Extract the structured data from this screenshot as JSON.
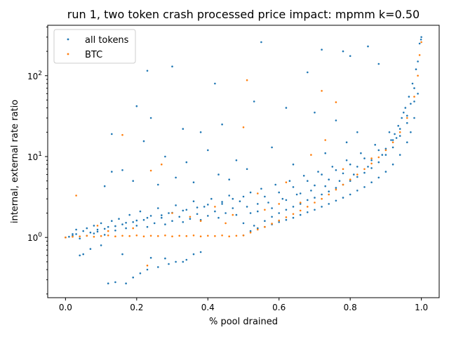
{
  "chart_data": {
    "type": "scatter",
    "title": "run 1, two token crash processed price impact: mpmm k=0.50",
    "xlabel": "% pool drained",
    "ylabel": "internal, external rate ratio",
    "x_range": [
      -0.05,
      1.05
    ],
    "y_range": [
      0.18,
      420
    ],
    "y_scale": "log",
    "x_ticks": [
      "0.0",
      "0.2",
      "0.4",
      "0.6",
      "0.8",
      "1.0"
    ],
    "x_tick_values": [
      0,
      0.2,
      0.4,
      0.6,
      0.8,
      1.0
    ],
    "y_ticks": [
      "10^0",
      "10^1",
      "10^2"
    ],
    "y_tick_values": [
      1,
      10,
      100
    ],
    "grid": false,
    "legend_position": "top-left",
    "series": [
      {
        "name": "all tokens",
        "color": "#1f77b4",
        "points": [
          [
            0.0,
            1.0
          ],
          [
            0.01,
            1.02
          ],
          [
            0.02,
            1.05
          ],
          [
            0.03,
            1.1
          ],
          [
            0.04,
            0.97
          ],
          [
            0.05,
            1.2
          ],
          [
            0.06,
            1.3
          ],
          [
            0.07,
            1.15
          ],
          [
            0.08,
            1.4
          ],
          [
            0.09,
            1.25
          ],
          [
            0.1,
            1.5
          ],
          [
            0.11,
            1.08
          ],
          [
            0.12,
            1.35
          ],
          [
            0.13,
            1.6
          ],
          [
            0.14,
            1.22
          ],
          [
            0.15,
            1.7
          ],
          [
            0.16,
            1.45
          ],
          [
            0.17,
            1.3
          ],
          [
            0.18,
            1.9
          ],
          [
            0.19,
            1.55
          ],
          [
            0.2,
            1.4
          ],
          [
            0.21,
            2.1
          ],
          [
            0.22,
            1.65
          ],
          [
            0.23,
            1.35
          ],
          [
            0.24,
            1.85
          ],
          [
            0.25,
            1.5
          ],
          [
            0.26,
            2.3
          ],
          [
            0.27,
            1.75
          ],
          [
            0.28,
            1.45
          ],
          [
            0.29,
            2.0
          ],
          [
            0.3,
            1.6
          ],
          [
            0.31,
            2.5
          ],
          [
            0.32,
            1.8
          ],
          [
            0.33,
            1.55
          ],
          [
            0.34,
            2.2
          ],
          [
            0.35,
            1.7
          ],
          [
            0.36,
            2.8
          ],
          [
            0.37,
            1.95
          ],
          [
            0.38,
            1.65
          ],
          [
            0.39,
            2.4
          ],
          [
            0.4,
            1.85
          ],
          [
            0.41,
            3.0
          ],
          [
            0.42,
            2.1
          ],
          [
            0.43,
            1.75
          ],
          [
            0.44,
            2.6
          ],
          [
            0.45,
            2.0
          ],
          [
            0.46,
            3.3
          ],
          [
            0.47,
            2.3
          ],
          [
            0.48,
            1.9
          ],
          [
            0.49,
            2.8
          ],
          [
            0.5,
            1.06
          ],
          [
            0.51,
            2.4
          ],
          [
            0.52,
            3.6
          ],
          [
            0.53,
            1.4
          ],
          [
            0.54,
            2.1
          ],
          [
            0.55,
            4.0
          ],
          [
            0.56,
            1.6
          ],
          [
            0.57,
            2.7
          ],
          [
            0.58,
            1.8
          ],
          [
            0.59,
            4.5
          ],
          [
            0.6,
            2.0
          ],
          [
            0.61,
            3.0
          ],
          [
            0.62,
            2.2
          ],
          [
            0.63,
            5.0
          ],
          [
            0.64,
            2.4
          ],
          [
            0.65,
            3.4
          ],
          [
            0.66,
            2.6
          ],
          [
            0.67,
            5.8
          ],
          [
            0.68,
            2.9
          ],
          [
            0.69,
            3.8
          ],
          [
            0.7,
            3.1
          ],
          [
            0.71,
            6.5
          ],
          [
            0.72,
            3.4
          ],
          [
            0.73,
            4.3
          ],
          [
            0.74,
            3.7
          ],
          [
            0.75,
            7.5
          ],
          [
            0.76,
            4.1
          ],
          [
            0.77,
            5.0
          ],
          [
            0.78,
            4.5
          ],
          [
            0.79,
            9.0
          ],
          [
            0.8,
            5.0
          ],
          [
            0.81,
            6.0
          ],
          [
            0.82,
            5.6
          ],
          [
            0.83,
            11.0
          ],
          [
            0.84,
            6.3
          ],
          [
            0.85,
            7.5
          ],
          [
            0.86,
            7.2
          ],
          [
            0.87,
            14.0
          ],
          [
            0.88,
            8.5
          ],
          [
            0.89,
            10.5
          ],
          [
            0.9,
            10.5
          ],
          [
            0.91,
            20.0
          ],
          [
            0.92,
            13.0
          ],
          [
            0.93,
            17.0
          ],
          [
            0.94,
            18.0
          ],
          [
            0.95,
            35.0
          ],
          [
            0.96,
            26.0
          ],
          [
            0.97,
            45.0
          ],
          [
            0.98,
            70.0
          ],
          [
            0.99,
            150.0
          ],
          [
            1.0,
            300.0
          ],
          [
            0.995,
            250.0
          ],
          [
            0.985,
            120.0
          ],
          [
            0.975,
            80.0
          ],
          [
            0.965,
            55.0
          ],
          [
            0.955,
            40.0
          ],
          [
            0.945,
            30.0
          ],
          [
            0.935,
            24.0
          ],
          [
            0.925,
            19.0
          ],
          [
            0.915,
            16.0
          ],
          [
            0.23,
            115.0
          ],
          [
            0.3,
            130.0
          ],
          [
            0.55,
            260.0
          ],
          [
            0.72,
            210.0
          ],
          [
            0.78,
            200.0
          ],
          [
            0.8,
            175.0
          ],
          [
            0.85,
            230.0
          ],
          [
            0.88,
            140.0
          ],
          [
            0.68,
            110.0
          ],
          [
            0.42,
            80.0
          ],
          [
            0.2,
            42.0
          ],
          [
            0.24,
            30.0
          ],
          [
            0.33,
            22.0
          ],
          [
            0.38,
            20.0
          ],
          [
            0.44,
            25.0
          ],
          [
            0.53,
            48.0
          ],
          [
            0.62,
            40.0
          ],
          [
            0.7,
            35.0
          ],
          [
            0.76,
            28.0
          ],
          [
            0.82,
            20.0
          ],
          [
            0.13,
            19.0
          ],
          [
            0.22,
            15.5
          ],
          [
            0.28,
            10.0
          ],
          [
            0.34,
            8.5
          ],
          [
            0.4,
            12.0
          ],
          [
            0.48,
            9.0
          ],
          [
            0.58,
            13.0
          ],
          [
            0.64,
            8.0
          ],
          [
            0.73,
            11.0
          ],
          [
            0.79,
            15.0
          ],
          [
            0.13,
            6.5
          ],
          [
            0.16,
            6.8
          ],
          [
            0.11,
            4.3
          ],
          [
            0.19,
            5.0
          ],
          [
            0.26,
            4.5
          ],
          [
            0.31,
            5.5
          ],
          [
            0.36,
            4.8
          ],
          [
            0.43,
            6.0
          ],
          [
            0.46,
            5.2
          ],
          [
            0.51,
            7.0
          ],
          [
            0.07,
            0.72
          ],
          [
            0.04,
            0.6
          ],
          [
            0.05,
            0.62
          ],
          [
            0.1,
            0.8
          ],
          [
            0.16,
            0.62
          ],
          [
            0.24,
            0.56
          ],
          [
            0.28,
            0.55
          ],
          [
            0.33,
            0.5
          ],
          [
            0.36,
            0.62
          ],
          [
            0.38,
            0.66
          ],
          [
            0.12,
            0.27
          ],
          [
            0.14,
            0.28
          ],
          [
            0.17,
            0.27
          ],
          [
            0.19,
            0.32
          ],
          [
            0.21,
            0.36
          ],
          [
            0.23,
            0.4
          ],
          [
            0.26,
            0.43
          ],
          [
            0.29,
            0.47
          ],
          [
            0.31,
            0.5
          ],
          [
            0.34,
            0.53
          ],
          [
            0.02,
            1.1
          ],
          [
            0.03,
            1.25
          ],
          [
            0.06,
            1.05
          ],
          [
            0.08,
            1.12
          ],
          [
            0.09,
            1.18
          ],
          [
            0.11,
            1.28
          ],
          [
            0.14,
            1.38
          ],
          [
            0.17,
            1.52
          ],
          [
            0.2,
            1.62
          ],
          [
            0.23,
            1.75
          ],
          [
            0.27,
            1.88
          ],
          [
            0.3,
            2.02
          ],
          [
            0.33,
            2.15
          ],
          [
            0.37,
            2.35
          ],
          [
            0.4,
            2.55
          ],
          [
            0.44,
            2.75
          ],
          [
            0.47,
            3.0
          ],
          [
            0.5,
            3.2
          ],
          [
            0.52,
            1.2
          ],
          [
            0.54,
            1.3
          ],
          [
            0.56,
            1.35
          ],
          [
            0.58,
            1.45
          ],
          [
            0.6,
            1.55
          ],
          [
            0.62,
            1.65
          ],
          [
            0.64,
            1.75
          ],
          [
            0.66,
            1.9
          ],
          [
            0.68,
            2.05
          ],
          [
            0.7,
            2.2
          ],
          [
            0.72,
            2.4
          ],
          [
            0.74,
            2.6
          ],
          [
            0.76,
            2.85
          ],
          [
            0.78,
            3.1
          ],
          [
            0.8,
            3.4
          ],
          [
            0.82,
            3.8
          ],
          [
            0.84,
            4.2
          ],
          [
            0.86,
            4.8
          ],
          [
            0.88,
            5.5
          ],
          [
            0.9,
            6.5
          ],
          [
            0.92,
            8.0
          ],
          [
            0.94,
            10.5
          ],
          [
            0.96,
            15.0
          ],
          [
            0.97,
            20.0
          ],
          [
            0.98,
            30.0
          ],
          [
            0.99,
            60.0
          ],
          [
            0.999,
            280.0
          ],
          [
            0.5,
            1.5
          ],
          [
            0.52,
            2.0
          ],
          [
            0.54,
            2.6
          ],
          [
            0.56,
            3.2
          ],
          [
            0.58,
            2.3
          ],
          [
            0.6,
            3.6
          ],
          [
            0.62,
            2.9
          ],
          [
            0.64,
            4.2
          ],
          [
            0.66,
            3.5
          ],
          [
            0.68,
            5.0
          ],
          [
            0.7,
            4.4
          ],
          [
            0.72,
            6.0
          ],
          [
            0.74,
            5.2
          ],
          [
            0.76,
            6.8
          ],
          [
            0.78,
            6.2
          ],
          [
            0.8,
            8.0
          ],
          [
            0.82,
            7.5
          ],
          [
            0.84,
            9.5
          ],
          [
            0.86,
            9.0
          ],
          [
            0.88,
            12.0
          ],
          [
            0.9,
            12.5
          ],
          [
            0.92,
            16.0
          ],
          [
            0.94,
            22.0
          ],
          [
            0.96,
            32.0
          ],
          [
            0.98,
            48.0
          ]
        ]
      },
      {
        "name": "BTC",
        "color": "#ff7f0e",
        "points": [
          [
            0.0,
            1.0
          ],
          [
            0.02,
            1.02
          ],
          [
            0.04,
            1.03
          ],
          [
            0.06,
            1.05
          ],
          [
            0.08,
            1.02
          ],
          [
            0.1,
            1.04
          ],
          [
            0.12,
            1.06
          ],
          [
            0.14,
            1.03
          ],
          [
            0.16,
            1.05
          ],
          [
            0.18,
            1.04
          ],
          [
            0.2,
            1.06
          ],
          [
            0.22,
            1.03
          ],
          [
            0.24,
            1.05
          ],
          [
            0.26,
            1.04
          ],
          [
            0.28,
            1.06
          ],
          [
            0.3,
            1.03
          ],
          [
            0.32,
            1.05
          ],
          [
            0.34,
            1.04
          ],
          [
            0.36,
            1.06
          ],
          [
            0.38,
            1.03
          ],
          [
            0.4,
            1.05
          ],
          [
            0.42,
            1.04
          ],
          [
            0.44,
            1.06
          ],
          [
            0.46,
            1.03
          ],
          [
            0.48,
            1.05
          ],
          [
            0.5,
            1.06
          ],
          [
            0.52,
            1.15
          ],
          [
            0.54,
            1.25
          ],
          [
            0.56,
            1.35
          ],
          [
            0.58,
            1.48
          ],
          [
            0.6,
            1.62
          ],
          [
            0.62,
            1.78
          ],
          [
            0.64,
            1.95
          ],
          [
            0.66,
            2.15
          ],
          [
            0.68,
            2.4
          ],
          [
            0.7,
            2.7
          ],
          [
            0.72,
            3.0
          ],
          [
            0.74,
            3.4
          ],
          [
            0.76,
            3.9
          ],
          [
            0.78,
            4.5
          ],
          [
            0.8,
            5.2
          ],
          [
            0.82,
            6.0
          ],
          [
            0.84,
            7.0
          ],
          [
            0.86,
            8.2
          ],
          [
            0.88,
            9.8
          ],
          [
            0.9,
            12.0
          ],
          [
            0.92,
            15.0
          ],
          [
            0.94,
            20.0
          ],
          [
            0.96,
            30.0
          ],
          [
            0.98,
            55.0
          ],
          [
            0.99,
            100.0
          ],
          [
            1.0,
            260.0
          ],
          [
            0.995,
            180.0
          ],
          [
            0.03,
            3.3
          ],
          [
            0.16,
            18.5
          ],
          [
            0.24,
            6.7
          ],
          [
            0.27,
            8.0
          ],
          [
            0.51,
            88.0
          ],
          [
            0.5,
            23.0
          ],
          [
            0.72,
            65.0
          ],
          [
            0.76,
            47.0
          ],
          [
            0.73,
            16.0
          ],
          [
            0.69,
            10.5
          ],
          [
            0.78,
            7.0
          ],
          [
            0.86,
            9.5
          ],
          [
            0.42,
            2.4
          ],
          [
            0.3,
            2.0
          ],
          [
            0.35,
            1.8
          ],
          [
            0.38,
            1.6
          ],
          [
            0.54,
            3.5
          ],
          [
            0.62,
            4.8
          ],
          [
            0.66,
            2.7
          ],
          [
            0.23,
            0.45
          ],
          [
            0.09,
            1.4
          ],
          [
            0.12,
            1.2
          ],
          [
            0.19,
            1.3
          ],
          [
            0.45,
            1.5
          ],
          [
            0.47,
            1.9
          ],
          [
            0.56,
            2.2
          ],
          [
            0.6,
            2.6
          ]
        ]
      }
    ]
  }
}
